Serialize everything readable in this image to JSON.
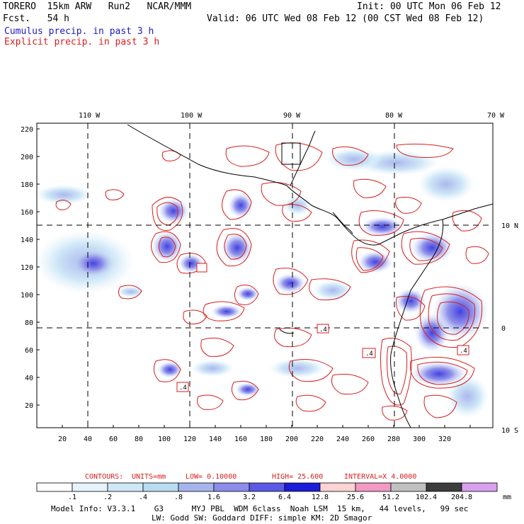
{
  "header": {
    "model": "TORERO  15km ARW   Run2   NCAR/MMM",
    "init": "Init: 00 UTC Mon 06 Feb 12",
    "fcst": "Fcst.   54 h",
    "valid": "Valid: 06 UTC Wed 08 Feb 12 (00 CST Wed 08 Feb 12)",
    "legend_cumulus": "Cumulus precip. in past 3 h",
    "legend_explicit": "Explicit precip. in past 3 h",
    "cumulus_color": "#1c1cc8",
    "explicit_color": "#d81e1e"
  },
  "axes": {
    "top_lon": [
      "110 W",
      "100 W",
      "90 W",
      "80 W",
      "70 W"
    ],
    "right_lat": [
      "10 N",
      "0",
      "10 S"
    ],
    "left_y": [
      "220",
      "200",
      "180",
      "160",
      "140",
      "120",
      "100",
      "80",
      "60",
      "40",
      "20"
    ],
    "bottom_x": [
      "20",
      "40",
      "60",
      "80",
      "100",
      "120",
      "140",
      "160",
      "180",
      "200",
      "220",
      "240",
      "260",
      "280",
      "300",
      "320"
    ]
  },
  "contours_info": {
    "label": "CONTOURS:",
    "units": "UNITS=mm",
    "low": "LOW= 0.10000",
    "high": "HIGH=  25.600",
    "interval": "INTERVAL=X  4.0000"
  },
  "colorbar": {
    "unit": "mm",
    "labels": [
      ".1",
      ".2",
      ".4",
      ".8",
      "1.6",
      "3.2",
      "6.4",
      "12.8",
      "25.6",
      "51.2",
      "102.4",
      "204.8"
    ],
    "colors": [
      "#ffffff",
      "#e6f3fb",
      "#cfe8f7",
      "#b7dcf2",
      "#a6b4ee",
      "#8c8cea",
      "#5a5ae6",
      "#1c1cdc",
      "#fbd3d3",
      "#f29ac4",
      "#c0c0c0",
      "#3c3c3c",
      "#d8a0f0"
    ]
  },
  "footer": {
    "line1": "Model Info: V3.3.1    G3      MYJ PBL  WDM 6class  Noah LSM  15 km,   44 levels,   99 sec",
    "line2": "LW: Godd SW: Goddard DIFF: simple KM: 2D Smagor"
  },
  "boxes": [
    ".4",
    ".4",
    ".4",
    ".4"
  ]
}
